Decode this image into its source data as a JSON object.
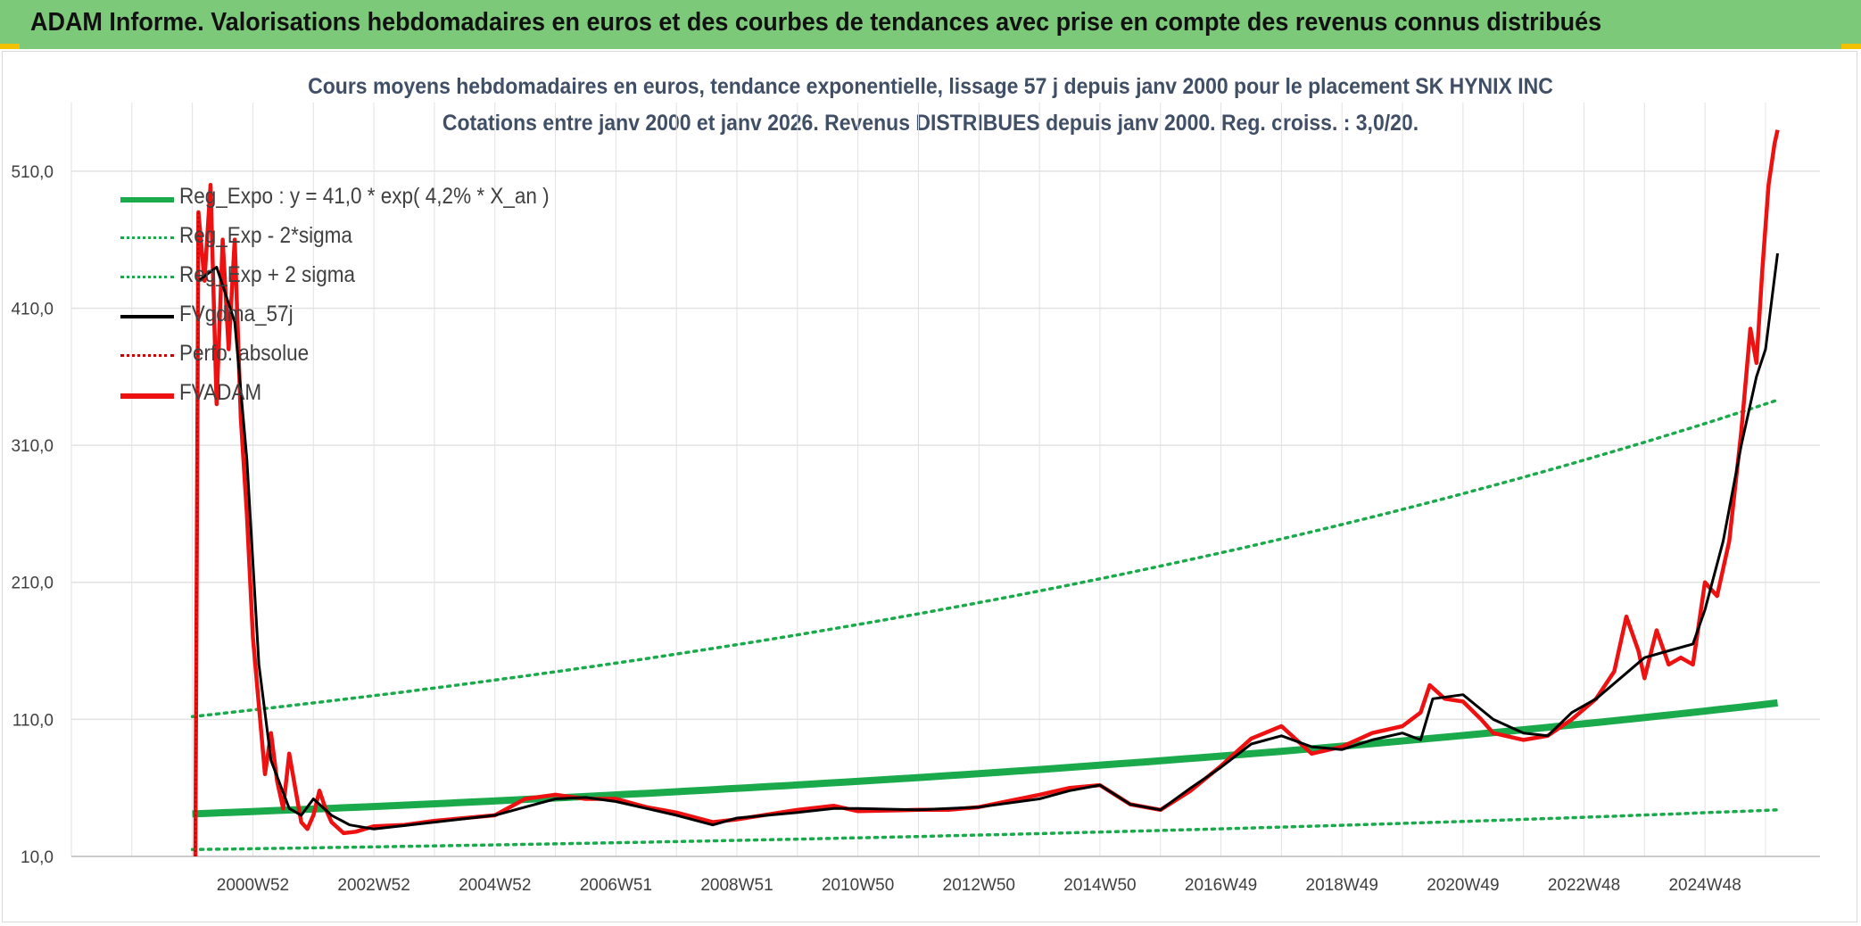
{
  "header": {
    "title": "ADAM Informe. Valorisations hebdomadaires en euros et des courbes de tendances avec prise en compte des revenus connus distribués"
  },
  "colors": {
    "banner": "#7cc97a",
    "regression": "#1aaa4c",
    "fvgdma": "#000000",
    "fvadam": "#ee1111",
    "perfo": "#cc0000"
  },
  "chart_data": {
    "type": "line",
    "title": "Cours moyens hebdomadaires en euros, tendance exponentielle, lissage 57 j depuis janv 2000 pour le placement SK HYNIX INC",
    "subtitle": "Cotations entre janv 2000 et janv 2026. Revenus DISTRIBUES depuis janv 2000. Reg. croiss. : 3,0/20.",
    "xlabel": "",
    "ylabel": "",
    "ylim": [
      10,
      560
    ],
    "xlim": [
      1998.0,
      2026.9
    ],
    "y_ticks": [
      "10,0",
      "110,0",
      "210,0",
      "310,0",
      "410,0",
      "510,0"
    ],
    "x_ticks": [
      "2000W52",
      "2002W52",
      "2004W52",
      "2006W51",
      "2008W51",
      "2010W50",
      "2012W50",
      "2014W50",
      "2016W49",
      "2018W49",
      "2020W49",
      "2022W48",
      "2024W48"
    ],
    "legend": [
      {
        "label": "Reg_Expo : y = 41,0 * exp( 4,2% *  X_an )",
        "style": "solid-thick",
        "color": "#1aaa4c"
      },
      {
        "label": "Reg_Exp - 2*sigma",
        "style": "dotted",
        "color": "#1aaa4c"
      },
      {
        "label": "Reg_Exp + 2 sigma",
        "style": "dotted",
        "color": "#1aaa4c"
      },
      {
        "label": "FVgdma_57j",
        "style": "solid",
        "color": "#000000"
      },
      {
        "label": "Perfo. absolue",
        "style": "dotted",
        "color": "#cc0000"
      },
      {
        "label": "FVADAM",
        "style": "solid-thick",
        "color": "#ee1111"
      }
    ],
    "series": [
      {
        "name": "Reg_Expo",
        "x": [
          2000.0,
          2026.2
        ],
        "values": [
          41.0,
          122.0
        ]
      },
      {
        "name": "Reg_Exp - 2*sigma",
        "x": [
          2000.0,
          2026.2
        ],
        "values": [
          15.0,
          44.0
        ]
      },
      {
        "name": "Reg_Exp + 2 sigma",
        "x": [
          2000.0,
          2026.2
        ],
        "values": [
          112.0,
          343.0
        ]
      },
      {
        "name": "FVgdma_57j",
        "x": [
          2000.1,
          2000.4,
          2000.7,
          2000.9,
          2001.1,
          2001.3,
          2001.6,
          2001.8,
          2002.0,
          2002.3,
          2002.6,
          2003.0,
          2004.0,
          2005.0,
          2005.5,
          2006.0,
          2006.5,
          2007.0,
          2007.5,
          2008.0,
          2008.6,
          2009.0,
          2010.0,
          2010.6,
          2011.0,
          2012.0,
          2012.5,
          2013.0,
          2014.0,
          2014.5,
          2015.0,
          2015.5,
          2016.0,
          2016.5,
          2017.0,
          2017.5,
          2018.0,
          2018.5,
          2019.0,
          2019.5,
          2020.0,
          2020.3,
          2020.5,
          2021.0,
          2021.5,
          2022.0,
          2022.4,
          2022.8,
          2023.2,
          2023.6,
          2024.0,
          2024.4,
          2024.8,
          2025.0,
          2025.3,
          2025.6,
          2025.85,
          2026.0,
          2026.2
        ],
        "values": [
          430,
          440,
          400,
          300,
          150,
          80,
          45,
          40,
          52,
          40,
          33,
          30,
          35,
          40,
          46,
          52,
          53,
          50,
          45,
          40,
          33,
          38,
          42,
          45,
          45,
          44,
          45,
          46,
          52,
          58,
          62,
          48,
          44,
          60,
          75,
          92,
          98,
          90,
          88,
          95,
          100,
          95,
          125,
          128,
          110,
          100,
          98,
          115,
          125,
          140,
          155,
          160,
          165,
          190,
          240,
          310,
          360,
          380,
          450
        ]
      },
      {
        "name": "FVADAM",
        "x": [
          2000.05,
          2000.1,
          2000.2,
          2000.3,
          2000.4,
          2000.5,
          2000.6,
          2000.7,
          2000.8,
          2000.9,
          2001.0,
          2001.1,
          2001.2,
          2001.3,
          2001.4,
          2001.5,
          2001.6,
          2001.7,
          2001.8,
          2001.9,
          2002.0,
          2002.1,
          2002.2,
          2002.3,
          2002.5,
          2002.7,
          2003.0,
          2003.5,
          2004.0,
          2004.5,
          2005.0,
          2005.5,
          2006.0,
          2006.5,
          2007.0,
          2007.5,
          2008.0,
          2008.6,
          2009.0,
          2010.0,
          2010.6,
          2011.0,
          2012.0,
          2012.5,
          2013.0,
          2014.0,
          2014.5,
          2015.0,
          2015.5,
          2016.0,
          2016.5,
          2017.0,
          2017.5,
          2018.0,
          2018.5,
          2019.0,
          2019.5,
          2020.0,
          2020.3,
          2020.45,
          2020.7,
          2021.0,
          2021.3,
          2021.5,
          2022.0,
          2022.4,
          2022.8,
          2023.2,
          2023.5,
          2023.7,
          2023.9,
          2024.0,
          2024.2,
          2024.4,
          2024.6,
          2024.8,
          2025.0,
          2025.2,
          2025.4,
          2025.6,
          2025.75,
          2025.85,
          2025.95,
          2026.05,
          2026.15,
          2026.2
        ],
        "values": [
          10,
          480,
          430,
          500,
          340,
          460,
          380,
          460,
          330,
          260,
          170,
          120,
          70,
          100,
          65,
          45,
          85,
          60,
          35,
          30,
          40,
          58,
          45,
          35,
          27,
          28,
          32,
          33,
          36,
          38,
          40,
          52,
          55,
          52,
          52,
          46,
          42,
          35,
          37,
          44,
          47,
          43,
          44,
          44,
          46,
          55,
          60,
          62,
          48,
          44,
          58,
          76,
          96,
          105,
          85,
          90,
          100,
          105,
          115,
          135,
          125,
          123,
          110,
          100,
          95,
          98,
          110,
          125,
          145,
          185,
          160,
          140,
          175,
          150,
          155,
          150,
          210,
          200,
          240,
          320,
          395,
          370,
          440,
          500,
          530,
          540
        ]
      },
      {
        "name": "Perfo. absolue",
        "x": [
          2000.05,
          2000.1
        ],
        "values": [
          10,
          480
        ]
      }
    ]
  }
}
